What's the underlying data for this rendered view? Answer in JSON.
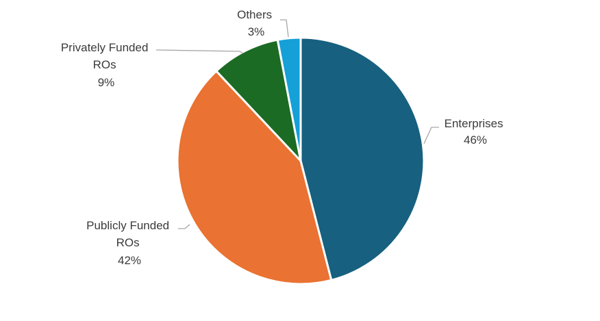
{
  "chart_data": {
    "type": "pie",
    "title": "",
    "start_angle_deg": 0,
    "direction": "clockwise",
    "slices": [
      {
        "name": "Enterprises",
        "label_lines": [
          "Enterprises"
        ],
        "value": 46,
        "value_label": "46%",
        "color": "#17607f"
      },
      {
        "name": "Publicly Funded ROs",
        "label_lines": [
          "Publicly Funded",
          "ROs"
        ],
        "value": 42,
        "value_label": "42%",
        "color": "#ea7232"
      },
      {
        "name": "Privately Funded ROs",
        "label_lines": [
          "Privately Funded",
          "ROs"
        ],
        "value": 9,
        "value_label": "9%",
        "color": "#1b6b24"
      },
      {
        "name": "Others",
        "label_lines": [
          "Others"
        ],
        "value": 3,
        "value_label": "3%",
        "color": "#15a0d8"
      }
    ],
    "legend": "none",
    "labels": "outside with leader lines"
  }
}
